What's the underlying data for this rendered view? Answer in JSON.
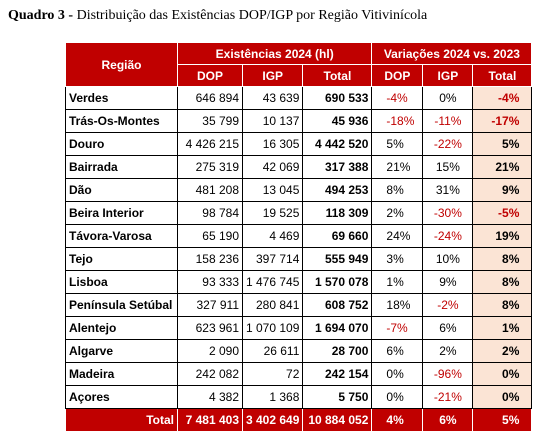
{
  "header": {
    "label": "Quadro 3 -",
    "text": "Distribuição das Existências DOP/IGP por Região Vitivinícola"
  },
  "table": {
    "corner": "Região",
    "groups": [
      "Existências 2024 (hl)",
      "Variações 2024 vs. 2023"
    ],
    "columns": [
      "DOP",
      "IGP",
      "Total",
      "DOP",
      "IGP",
      "Total"
    ],
    "rows": [
      [
        "Verdes",
        "646 894",
        "43 639",
        "690 533",
        "-4%",
        "0%",
        "-4%"
      ],
      [
        "Trás-Os-Montes",
        "35 799",
        "10 137",
        "45 936",
        "-18%",
        "-11%",
        "-17%"
      ],
      [
        "Douro",
        "4 426 215",
        "16 305",
        "4 442 520",
        "5%",
        "-22%",
        "5%"
      ],
      [
        "Bairrada",
        "275 319",
        "42 069",
        "317 388",
        "21%",
        "15%",
        "21%"
      ],
      [
        "Dão",
        "481 208",
        "13 045",
        "494 253",
        "8%",
        "31%",
        "9%"
      ],
      [
        "Beira Interior",
        "98 784",
        "19 525",
        "118 309",
        "2%",
        "-30%",
        "-5%"
      ],
      [
        "Távora-Varosa",
        "65 190",
        "4 469",
        "69 660",
        "24%",
        "-24%",
        "19%"
      ],
      [
        "Tejo",
        "158 236",
        "397 714",
        "555 949",
        "3%",
        "10%",
        "8%"
      ],
      [
        "Lisboa",
        "93 333",
        "1 476 745",
        "1 570 078",
        "1%",
        "9%",
        "8%"
      ],
      [
        "Península Setúbal",
        "327 911",
        "280 841",
        "608 752",
        "18%",
        "-2%",
        "8%"
      ],
      [
        "Alentejo",
        "623 961",
        "1 070 109",
        "1 694 070",
        "-7%",
        "6%",
        "1%"
      ],
      [
        "Algarve",
        "2 090",
        "26 611",
        "28 700",
        "6%",
        "2%",
        "2%"
      ],
      [
        "Madeira",
        "242 082",
        "72",
        "242 154",
        "0%",
        "-96%",
        "0%"
      ],
      [
        "Açores",
        "4 382",
        "1 368",
        "5 750",
        "0%",
        "-21%",
        "0%"
      ]
    ],
    "total": [
      "Total",
      "7 481 403",
      "3 402 649",
      "10 884 052",
      "4%",
      "6%",
      "5%"
    ]
  }
}
